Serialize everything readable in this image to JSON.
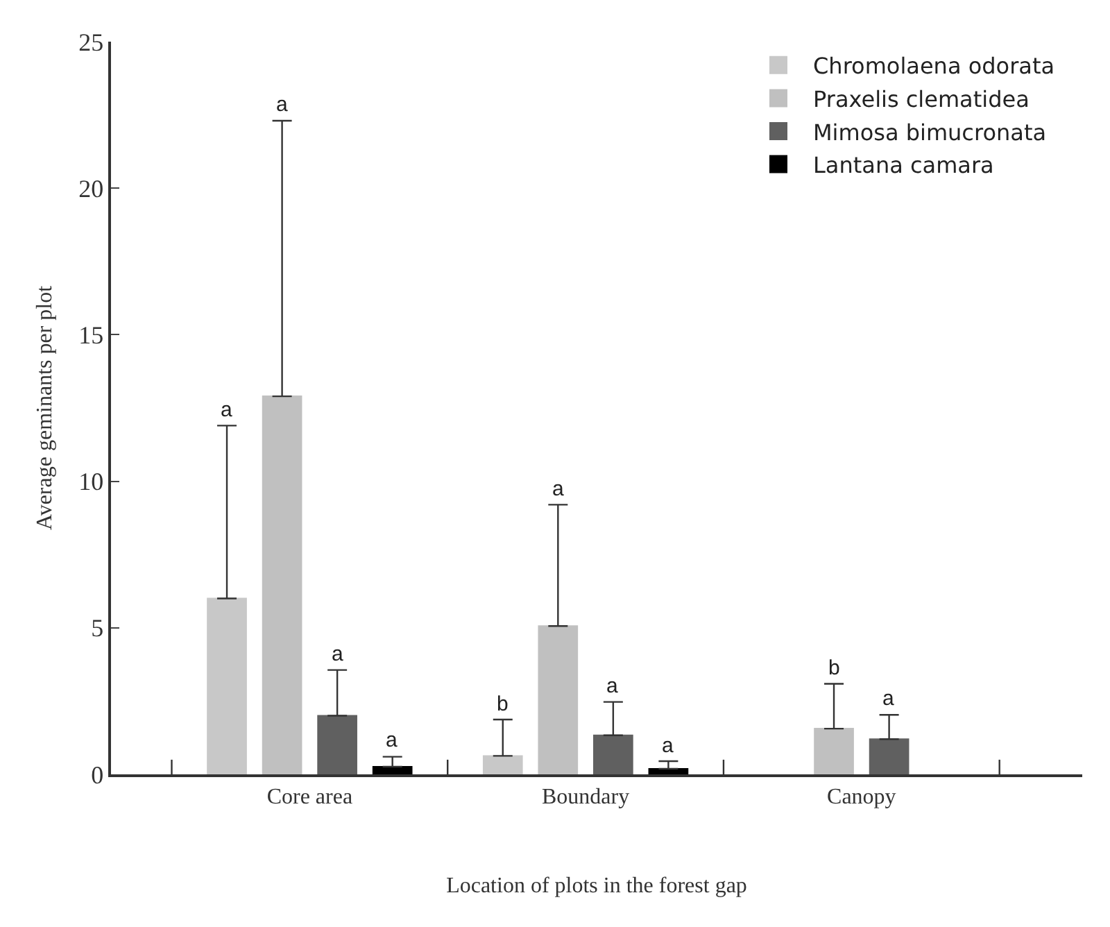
{
  "chart_data": {
    "type": "bar",
    "xlabel": "Location of plots in the forest gap",
    "ylabel": "Average geminants per plot",
    "categories": [
      "Core area",
      "Boundary",
      "Canopy"
    ],
    "ylim": [
      0,
      25
    ],
    "yticks": [
      0,
      5,
      10,
      15,
      20,
      25
    ],
    "legend": "top right",
    "series": [
      {
        "name": "Chromolaena odorata",
        "color": "#c8c8c8",
        "values": [
          6.0,
          0.63,
          null
        ],
        "errors": [
          [
            6.0,
            11.9
          ],
          [
            0.63,
            1.87
          ],
          null
        ]
      },
      {
        "name": "Praxelis clematidea",
        "color": "#c0c0c0",
        "values": [
          12.9,
          5.06,
          1.56
        ],
        "errors": [
          [
            12.9,
            22.3
          ],
          [
            5.06,
            9.2
          ],
          [
            1.56,
            3.09
          ]
        ]
      },
      {
        "name": "Mimosa bimucronata",
        "color": "#606060",
        "values": [
          2.0,
          1.33,
          1.2
        ],
        "errors": [
          [
            2.0,
            3.56
          ],
          [
            1.33,
            2.47
          ],
          [
            1.2,
            2.03
          ]
        ]
      },
      {
        "name": "Lantana camara",
        "color": "#000000",
        "values": [
          0.26,
          0.19,
          null
        ],
        "errors": [
          [
            0.26,
            0.6
          ],
          [
            0.19,
            0.45
          ],
          null
        ]
      }
    ],
    "annotations": [
      "a",
      "a",
      "a",
      "a",
      "b",
      "a",
      "a",
      "a",
      "b",
      "a"
    ]
  }
}
